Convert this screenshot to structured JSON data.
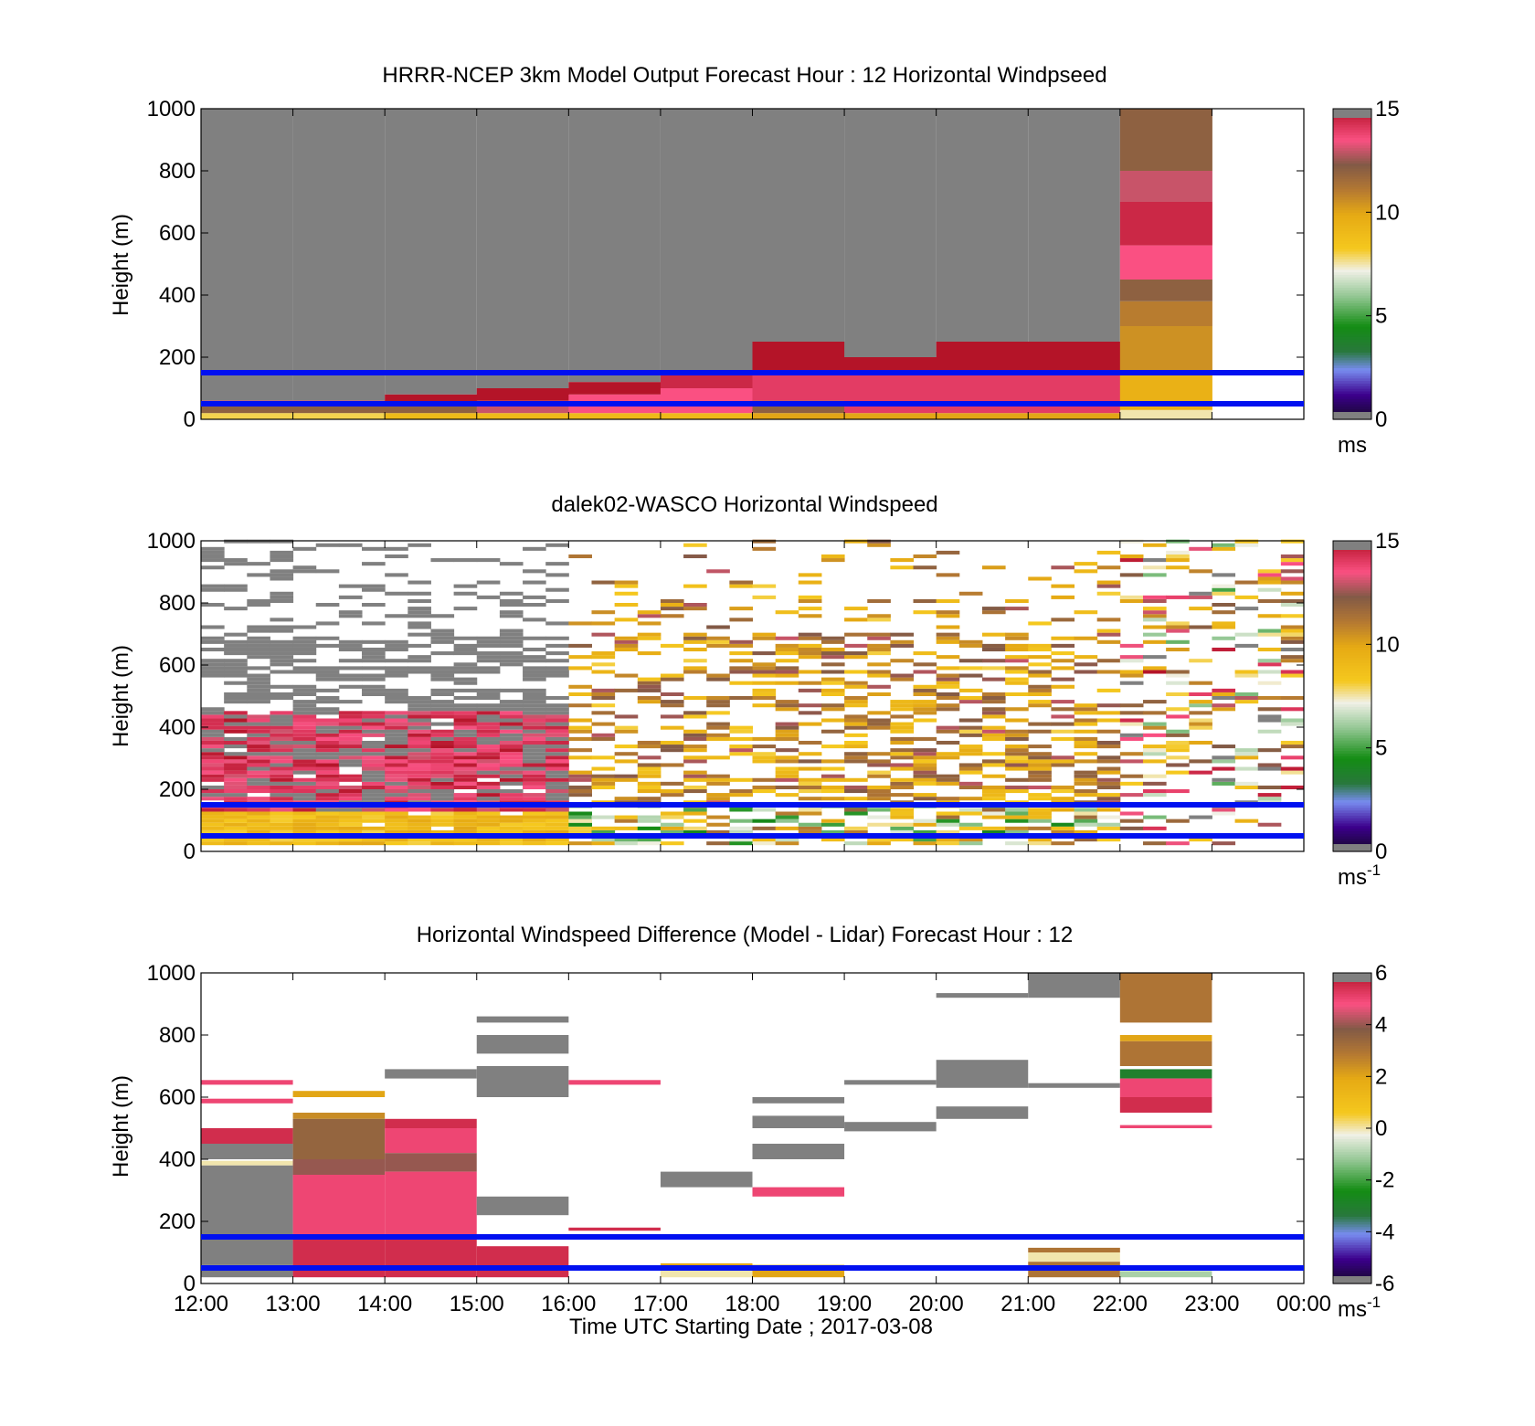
{
  "chart_data": [
    {
      "type": "heatmap",
      "title": "HRRR-NCEP 3km Model Output   Forecast Hour : 12 Horizontal Windpseed",
      "xlabel": "",
      "ylabel": "Height (m)",
      "ylim": [
        0,
        1000
      ],
      "yticks": [
        "0",
        "200",
        "400",
        "600",
        "800",
        "1000"
      ],
      "xticks": [
        "12:00",
        "13:00",
        "14:00",
        "15:00",
        "16:00",
        "17:00",
        "18:00",
        "19:00",
        "20:00",
        "21:00",
        "22:00",
        "23:00",
        "00:00"
      ],
      "show_xtick_labels": false,
      "colorbar": {
        "ticks": [
          "0",
          "5",
          "10",
          "15"
        ],
        "range": [
          0,
          15
        ],
        "unit": "ms",
        "unit_sup": ""
      },
      "reference_lines_m": [
        50,
        150
      ],
      "note": "Each column is one forecast hour; layers give height ranges (m) and windspeed (m/s); the rest of each column is grey (beyond range).",
      "columns": [
        {
          "hour": "12:00",
          "layers": [
            [
              0,
              20,
              8
            ],
            [
              20,
              50,
              12
            ],
            [
              50,
              60,
              14
            ]
          ]
        },
        {
          "hour": "13:00",
          "layers": [
            [
              0,
              20,
              8
            ],
            [
              20,
              50,
              12
            ],
            [
              50,
              60,
              14
            ]
          ]
        },
        {
          "hour": "14:00",
          "layers": [
            [
              0,
              20,
              9
            ],
            [
              20,
              50,
              12
            ],
            [
              50,
              80,
              15
            ]
          ]
        },
        {
          "hour": "15:00",
          "layers": [
            [
              0,
              20,
              9
            ],
            [
              20,
              60,
              13
            ],
            [
              60,
              100,
              15
            ]
          ]
        },
        {
          "hour": "16:00",
          "layers": [
            [
              0,
              20,
              9
            ],
            [
              20,
              80,
              13.5
            ],
            [
              80,
              120,
              15
            ]
          ]
        },
        {
          "hour": "17:00",
          "layers": [
            [
              0,
              20,
              9
            ],
            [
              20,
              100,
              13.5
            ],
            [
              100,
              150,
              14.5
            ]
          ]
        },
        {
          "hour": "18:00",
          "layers": [
            [
              0,
              20,
              10
            ],
            [
              20,
              60,
              12
            ],
            [
              60,
              150,
              14
            ],
            [
              150,
              250,
              15
            ]
          ]
        },
        {
          "hour": "19:00",
          "layers": [
            [
              0,
              20,
              10
            ],
            [
              20,
              150,
              14
            ],
            [
              150,
              200,
              15
            ]
          ]
        },
        {
          "hour": "20:00",
          "layers": [
            [
              0,
              20,
              10
            ],
            [
              20,
              150,
              14
            ],
            [
              150,
              250,
              15
            ]
          ]
        },
        {
          "hour": "21:00",
          "layers": [
            [
              0,
              20,
              10
            ],
            [
              20,
              150,
              14
            ],
            [
              150,
              250,
              15
            ]
          ]
        },
        {
          "hour": "22:00",
          "layers": [
            [
              0,
              30,
              7.5
            ],
            [
              30,
              150,
              9.5
            ],
            [
              150,
              300,
              10.5
            ],
            [
              300,
              380,
              11
            ],
            [
              380,
              450,
              12
            ],
            [
              450,
              560,
              13.5
            ],
            [
              560,
              700,
              14.5
            ],
            [
              700,
              800,
              13
            ],
            [
              800,
              1000,
              12
            ]
          ]
        },
        {
          "hour": "23:00",
          "layers": []
        }
      ]
    },
    {
      "type": "heatmap",
      "title": "dalek02-WASCO  Horizontal Windspeed",
      "xlabel": "",
      "ylabel": "Height (m)",
      "ylim": [
        0,
        1000
      ],
      "yticks": [
        "0",
        "200",
        "400",
        "600",
        "800",
        "1000"
      ],
      "xticks": [
        "12:00",
        "13:00",
        "14:00",
        "15:00",
        "16:00",
        "17:00",
        "18:00",
        "19:00",
        "20:00",
        "21:00",
        "22:00",
        "23:00",
        "00:00"
      ],
      "show_xtick_labels": false,
      "colorbar": {
        "ticks": [
          "0",
          "5",
          "10",
          "15"
        ],
        "range": [
          0,
          15
        ],
        "unit": "ms",
        "unit_sup": "-1"
      },
      "reference_lines_m": [
        50,
        150
      ],
      "note": "Lidar retrievals are sparse and noisy; cells approximate the pattern (windspeed m/s), grey above 15.",
      "seed": 7
    },
    {
      "type": "heatmap",
      "title": "Horizontal Windspeed Difference (Model - Lidar) Forecast Hour : 12",
      "xlabel": "Time UTC  Starting Date ; 2017-03-08",
      "ylabel": "Height (m)",
      "ylim": [
        0,
        1000
      ],
      "yticks": [
        "0",
        "200",
        "400",
        "600",
        "800",
        "1000"
      ],
      "xticks": [
        "12:00",
        "13:00",
        "14:00",
        "15:00",
        "16:00",
        "17:00",
        "18:00",
        "19:00",
        "20:00",
        "21:00",
        "22:00",
        "23:00",
        "00:00"
      ],
      "show_xtick_labels": true,
      "colorbar": {
        "ticks": [
          "-6",
          "-4",
          "-2",
          "0",
          "2",
          "4",
          "6"
        ],
        "range": [
          -6,
          6
        ],
        "unit": "ms",
        "unit_sup": "-1"
      },
      "reference_lines_m": [
        50,
        150
      ],
      "note": "Cells give [hour index, bottom m, top m, difference m/s]; value 99 = out of range (grey).",
      "cells": [
        [
          0,
          640,
          655,
          5
        ],
        [
          0,
          580,
          595,
          5
        ],
        [
          0,
          450,
          500,
          5.5
        ],
        [
          0,
          400,
          450,
          99
        ],
        [
          0,
          380,
          395,
          0
        ],
        [
          0,
          60,
          380,
          99
        ],
        [
          0,
          20,
          60,
          99
        ],
        [
          1,
          600,
          620,
          2
        ],
        [
          1,
          530,
          550,
          2.5
        ],
        [
          1,
          400,
          530,
          3.5
        ],
        [
          1,
          350,
          400,
          4
        ],
        [
          1,
          150,
          350,
          5
        ],
        [
          1,
          20,
          150,
          5.5
        ],
        [
          2,
          660,
          690,
          99
        ],
        [
          2,
          500,
          530,
          5.5
        ],
        [
          2,
          420,
          500,
          5
        ],
        [
          2,
          360,
          420,
          4
        ],
        [
          2,
          150,
          360,
          5
        ],
        [
          2,
          20,
          150,
          5.5
        ],
        [
          3,
          840,
          860,
          99
        ],
        [
          3,
          740,
          800,
          99
        ],
        [
          3,
          600,
          700,
          99
        ],
        [
          3,
          220,
          280,
          99
        ],
        [
          3,
          20,
          120,
          5.5
        ],
        [
          4,
          640,
          655,
          5
        ],
        [
          4,
          170,
          180,
          5.5
        ],
        [
          5,
          310,
          360,
          99
        ],
        [
          5,
          50,
          65,
          2
        ],
        [
          5,
          20,
          50,
          0
        ],
        [
          6,
          580,
          600,
          99
        ],
        [
          6,
          500,
          540,
          99
        ],
        [
          6,
          400,
          450,
          99
        ],
        [
          6,
          280,
          310,
          5
        ],
        [
          6,
          20,
          60,
          2
        ],
        [
          7,
          640,
          655,
          99
        ],
        [
          7,
          490,
          520,
          99
        ],
        [
          8,
          920,
          935,
          99
        ],
        [
          8,
          630,
          720,
          99
        ],
        [
          8,
          530,
          570,
          99
        ],
        [
          9,
          920,
          1000,
          99
        ],
        [
          9,
          630,
          645,
          99
        ],
        [
          9,
          100,
          115,
          3
        ],
        [
          9,
          70,
          100,
          0
        ],
        [
          9,
          20,
          70,
          3
        ],
        [
          10,
          840,
          1000,
          3
        ],
        [
          10,
          780,
          800,
          2
        ],
        [
          10,
          700,
          780,
          3
        ],
        [
          10,
          660,
          690,
          -3
        ],
        [
          10,
          600,
          660,
          5
        ],
        [
          10,
          550,
          600,
          5.5
        ],
        [
          10,
          500,
          510,
          5
        ],
        [
          10,
          20,
          40,
          -1
        ]
      ]
    }
  ]
}
